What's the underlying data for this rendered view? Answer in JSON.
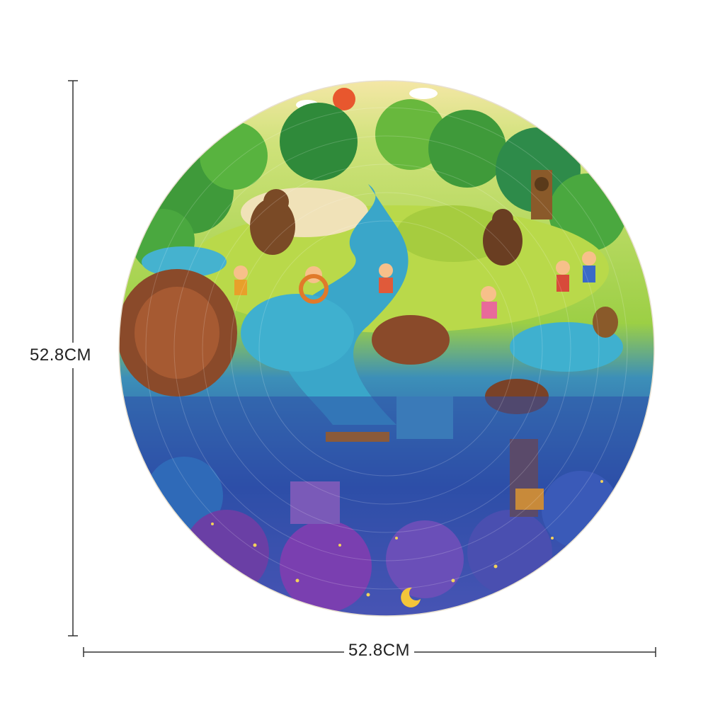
{
  "dimensions": {
    "height_label": "52.8CM",
    "width_label": "52.8CM"
  },
  "puzzle": {
    "shape": "round",
    "palette": {
      "sky": "#f6e7a8",
      "forest_green": "#3f9a3a",
      "light_green": "#b9d94a",
      "water": "#3aa6c9",
      "earth": "#8a4a2a",
      "night_blue": "#2d4fa8",
      "night_purple": "#6a3fa5",
      "violet": "#8c7fd6"
    }
  }
}
